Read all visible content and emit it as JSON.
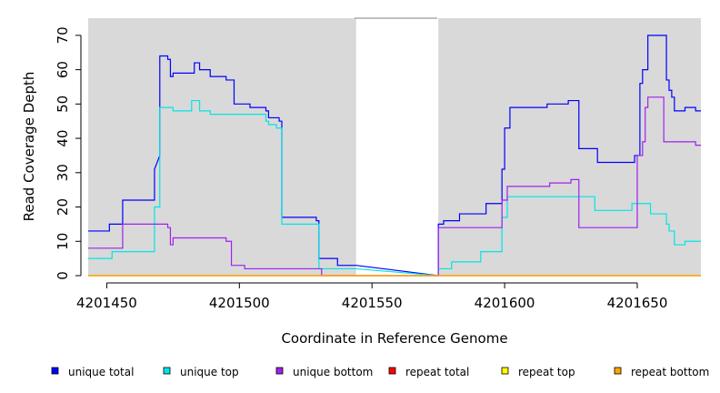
{
  "chart_data": {
    "type": "line",
    "title": "",
    "xlabel": "Coordinate in Reference Genome",
    "ylabel": "Read Coverage Depth",
    "xlim": [
      4201443,
      4201674
    ],
    "ylim": [
      0,
      75
    ],
    "x_ticks": [
      4201450,
      4201500,
      4201550,
      4201600,
      4201650
    ],
    "y_ticks": [
      0,
      10,
      20,
      30,
      40,
      50,
      60,
      70
    ],
    "legend_position": "bottom",
    "background_color": "#d9d9d9",
    "gap_regions": [
      [
        4201544,
        4201575
      ]
    ],
    "series": [
      {
        "name": "unique total",
        "color": "#0000ff",
        "x": [
          4201443,
          4201451,
          4201451,
          4201456,
          4201456,
          4201461,
          4201461,
          4201462,
          4201468,
          4201468,
          4201470,
          4201470,
          4201473,
          4201473,
          4201474,
          4201474,
          4201475,
          4201475,
          4201477,
          4201483,
          4201483,
          4201485,
          4201485,
          4201489,
          4201489,
          4201491,
          4201495,
          4201495,
          4201498,
          4201498,
          4201504,
          4201504,
          4201510,
          4201510,
          4201511,
          4201511,
          4201515,
          4201515,
          4201516,
          4201516,
          4201524,
          4201529,
          4201529,
          4201530,
          4201530,
          4201537,
          4201537,
          4201544,
          4201575,
          4201575,
          4201577,
          4201577,
          4201583,
          4201583,
          4201593,
          4201593,
          4201599,
          4201599,
          4201600,
          4201600,
          4201602,
          4201602,
          4201616,
          4201616,
          4201624,
          4201624,
          4201628,
          4201628,
          4201635,
          4201635,
          4201649,
          4201649,
          4201651,
          4201651,
          4201652,
          4201652,
          4201654,
          4201654,
          4201661,
          4201661,
          4201662,
          4201662,
          4201663,
          4201663,
          4201664,
          4201664,
          4201668,
          4201668,
          4201672,
          4201672,
          4201674
        ],
        "y": [
          13,
          13,
          15,
          15,
          22,
          22,
          22,
          22,
          22,
          31,
          35,
          64,
          64,
          63,
          63,
          58,
          58,
          59,
          59,
          59,
          62,
          62,
          60,
          60,
          58,
          58,
          58,
          57,
          57,
          50,
          50,
          49,
          49,
          48,
          48,
          46,
          46,
          45,
          45,
          17,
          17,
          17,
          16,
          16,
          5,
          5,
          3,
          3,
          0,
          15,
          15,
          16,
          16,
          18,
          18,
          21,
          21,
          31,
          31,
          43,
          43,
          49,
          49,
          50,
          50,
          51,
          51,
          37,
          37,
          33,
          33,
          35,
          35,
          56,
          56,
          60,
          60,
          70,
          70,
          57,
          57,
          54,
          54,
          52,
          52,
          48,
          48,
          49,
          49,
          48,
          48
        ]
      },
      {
        "name": "unique top",
        "color": "#00e5e5",
        "x": [
          4201443,
          4201452,
          4201452,
          4201456,
          4201456,
          4201461,
          4201461,
          4201468,
          4201468,
          4201470,
          4201470,
          4201474,
          4201474,
          4201475,
          4201475,
          4201482,
          4201482,
          4201485,
          4201485,
          4201489,
          4201489,
          4201497,
          4201497,
          4201504,
          4201504,
          4201510,
          4201510,
          4201511,
          4201511,
          4201514,
          4201514,
          4201516,
          4201516,
          4201530,
          4201530,
          4201544,
          4201575,
          4201575,
          4201580,
          4201580,
          4201591,
          4201591,
          4201599,
          4201599,
          4201601,
          4201601,
          4201634,
          4201634,
          4201648,
          4201648,
          4201655,
          4201655,
          4201661,
          4201661,
          4201662,
          4201662,
          4201664,
          4201664,
          4201668,
          4201668,
          4201674
        ],
        "y": [
          5,
          5,
          7,
          7,
          7,
          7,
          7,
          7,
          20,
          20,
          49,
          49,
          49,
          49,
          48,
          48,
          51,
          51,
          48,
          48,
          47,
          47,
          47,
          47,
          47,
          47,
          45,
          45,
          44,
          44,
          43,
          43,
          15,
          15,
          2,
          2,
          0,
          2,
          2,
          4,
          4,
          7,
          7,
          17,
          17,
          23,
          23,
          19,
          19,
          21,
          21,
          18,
          18,
          15,
          15,
          13,
          13,
          9,
          9,
          10,
          10
        ]
      },
      {
        "name": "unique bottom",
        "color": "#a020f0",
        "x": [
          4201443,
          4201451,
          4201451,
          4201456,
          4201456,
          4201466,
          4201466,
          4201473,
          4201473,
          4201474,
          4201474,
          4201475,
          4201475,
          4201495,
          4201495,
          4201497,
          4201497,
          4201502,
          4201502,
          4201531,
          4201531,
          4201544,
          4201575,
          4201575,
          4201599,
          4201599,
          4201601,
          4201601,
          4201617,
          4201617,
          4201625,
          4201625,
          4201628,
          4201628,
          4201650,
          4201650,
          4201652,
          4201652,
          4201653,
          4201653,
          4201654,
          4201654,
          4201660,
          4201660,
          4201672,
          4201672,
          4201674
        ],
        "y": [
          8,
          8,
          8,
          8,
          15,
          15,
          15,
          15,
          14,
          14,
          9,
          9,
          11,
          11,
          10,
          10,
          3,
          3,
          2,
          2,
          0,
          0,
          0,
          14,
          14,
          22,
          22,
          26,
          26,
          27,
          27,
          28,
          28,
          14,
          14,
          35,
          35,
          39,
          39,
          49,
          49,
          52,
          52,
          39,
          39,
          38,
          38
        ]
      },
      {
        "name": "repeat total",
        "color": "#ff0000",
        "x": [
          4201443,
          4201674
        ],
        "y": [
          0,
          0
        ]
      },
      {
        "name": "repeat top",
        "color": "#ffff00",
        "x": [
          4201443,
          4201674
        ],
        "y": [
          0,
          0
        ]
      },
      {
        "name": "repeat bottom",
        "color": "#ffa500",
        "x": [
          4201443,
          4201674
        ],
        "y": [
          0,
          0
        ]
      }
    ]
  }
}
